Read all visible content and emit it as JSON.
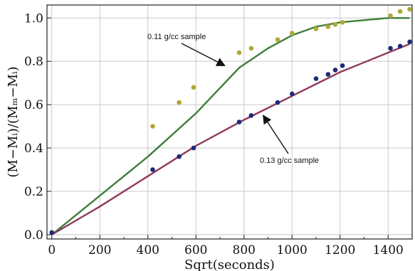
{
  "chart_data": {
    "type": "scatter",
    "xlabel": "Sqrt(seconds)",
    "ylabel": "(M−Mᵢ)/(Mₘ−Mᵢ)",
    "xlim": [
      -20,
      1500
    ],
    "ylim": [
      -0.02,
      1.06
    ],
    "x_ticks": [
      0,
      200,
      400,
      600,
      800,
      1000,
      1200,
      1400
    ],
    "x_tick_labels": [
      "0",
      "200",
      "400",
      "600",
      "800",
      "1000",
      "1200",
      "1400"
    ],
    "y_ticks": [
      0.0,
      0.2,
      0.4,
      0.6,
      0.8,
      1.0
    ],
    "y_tick_labels": [
      "0.0",
      "0.2",
      "0.4",
      "0.6",
      "0.8",
      "1.0"
    ],
    "grid": true,
    "series": [
      {
        "name": "0.11 g/cc sample",
        "color": "#b0a834",
        "points": [
          [
            0,
            0.01
          ],
          [
            420,
            0.5
          ],
          [
            530,
            0.61
          ],
          [
            590,
            0.68
          ],
          [
            780,
            0.84
          ],
          [
            830,
            0.86
          ],
          [
            940,
            0.9
          ],
          [
            1000,
            0.93
          ],
          [
            1100,
            0.95
          ],
          [
            1150,
            0.96
          ],
          [
            1180,
            0.97
          ],
          [
            1210,
            0.98
          ],
          [
            1410,
            1.01
          ],
          [
            1450,
            1.03
          ],
          [
            1490,
            1.04
          ]
        ]
      },
      {
        "name": "0.13 g/cc sample",
        "color": "#1c2a7a",
        "points": [
          [
            0,
            0.01
          ],
          [
            420,
            0.3
          ],
          [
            530,
            0.36
          ],
          [
            590,
            0.4
          ],
          [
            780,
            0.52
          ],
          [
            830,
            0.55
          ],
          [
            940,
            0.61
          ],
          [
            1000,
            0.65
          ],
          [
            1100,
            0.72
          ],
          [
            1150,
            0.74
          ],
          [
            1180,
            0.76
          ],
          [
            1210,
            0.78
          ],
          [
            1410,
            0.86
          ],
          [
            1450,
            0.87
          ],
          [
            1490,
            0.89
          ]
        ]
      }
    ],
    "fits": [
      {
        "color": "#3e7e3a",
        "points": [
          [
            0,
            0.0
          ],
          [
            200,
            0.18
          ],
          [
            400,
            0.36
          ],
          [
            600,
            0.56
          ],
          [
            780,
            0.77
          ],
          [
            900,
            0.86
          ],
          [
            1000,
            0.92
          ],
          [
            1100,
            0.96
          ],
          [
            1200,
            0.98
          ],
          [
            1300,
            0.99
          ],
          [
            1400,
            1.0
          ],
          [
            1490,
            1.0
          ]
        ]
      },
      {
        "color": "#8e3a5c",
        "points": [
          [
            0,
            0.0
          ],
          [
            200,
            0.13
          ],
          [
            400,
            0.27
          ],
          [
            600,
            0.41
          ],
          [
            800,
            0.53
          ],
          [
            1000,
            0.64
          ],
          [
            1200,
            0.75
          ],
          [
            1400,
            0.84
          ],
          [
            1490,
            0.88
          ]
        ]
      }
    ],
    "annotations": [
      {
        "text": "0.11 g/cc sample",
        "target": [
          720,
          0.78
        ]
      },
      {
        "text": "0.13 g/cc sample",
        "target": [
          880,
          0.55
        ]
      }
    ]
  }
}
